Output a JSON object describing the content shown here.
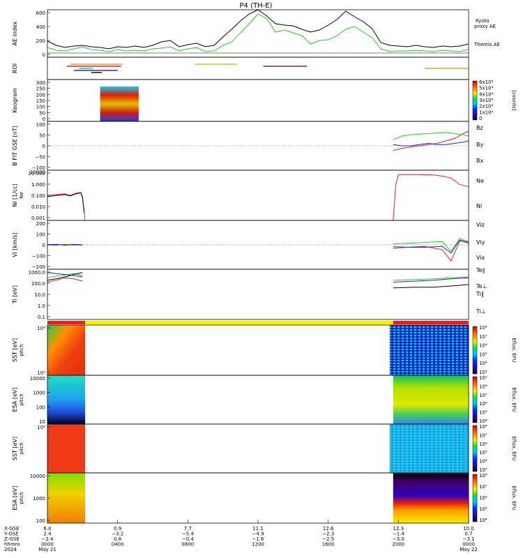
{
  "title": "P4 (TH-E)",
  "chart_data": {
    "type": "line",
    "title": "P4 (TH-E)",
    "panels": [
      {
        "id": "ae",
        "ylabel": "AE index",
        "ylim": [
          -60,
          620
        ],
        "yticks": [
          "600",
          "400",
          "200",
          "0"
        ],
        "series": [
          {
            "name": "Kyoto proxy AE",
            "color": "#22cc22",
            "x": [
              0,
              0.5,
              1,
              1.5,
              2,
              2.5,
              3,
              3.5,
              4,
              4.5,
              5,
              5.5,
              6,
              6.5,
              7,
              7.5,
              8,
              8.5,
              9,
              9.5,
              10,
              10.5,
              11,
              11.5,
              12,
              12.5,
              13,
              13.5,
              14,
              14.5,
              15,
              15.5,
              16,
              16.5,
              17,
              17.5,
              18,
              18.5,
              19,
              19.5,
              20,
              20.5,
              21,
              21.5,
              22,
              22.5,
              23,
              23.5,
              24
            ],
            "y": [
              80,
              40,
              30,
              60,
              90,
              50,
              40,
              20,
              50,
              30,
              40,
              30,
              60,
              70,
              90,
              30,
              60,
              80,
              20,
              30,
              110,
              160,
              290,
              420,
              560,
              490,
              300,
              330,
              290,
              250,
              130,
              180,
              190,
              250,
              340,
              380,
              300,
              220,
              60,
              20,
              30,
              30,
              40,
              30,
              20,
              40,
              30,
              20,
              50
            ]
          },
          {
            "name": "Themis AE",
            "color": "#000000",
            "x": [
              0,
              0.5,
              1,
              1.5,
              2,
              2.5,
              3,
              3.5,
              4,
              4.5,
              5,
              5.5,
              6,
              6.5,
              7,
              7.5,
              8,
              8.5,
              9,
              9.5,
              10,
              10.5,
              11,
              11.5,
              12,
              12.5,
              13,
              13.5,
              14,
              14.5,
              15,
              15.5,
              16,
              16.5,
              17,
              17.5,
              18,
              18.5,
              19,
              19.5,
              20,
              20.5,
              21,
              21.5,
              22,
              22.5,
              23,
              23.5,
              24
            ],
            "y": [
              170,
              110,
              80,
              100,
              110,
              90,
              80,
              60,
              90,
              80,
              100,
              80,
              110,
              160,
              180,
              90,
              120,
              140,
              90,
              110,
              230,
              340,
              460,
              560,
              620,
              530,
              420,
              400,
              390,
              340,
              300,
              330,
              400,
              480,
              600,
              520,
              450,
              350,
              150,
              110,
              100,
              90,
              110,
              90,
              80,
              100,
              90,
              100,
              130
            ]
          }
        ]
      },
      {
        "id": "roi",
        "ylabel": "ROI",
        "segments": [
          {
            "color": "#e8a020",
            "x": [
              1.3,
              4.3
            ]
          },
          {
            "color": "#d03030",
            "x": [
              1.1,
              4.2
            ]
          },
          {
            "color": "#4aa8d8",
            "x": [
              1.8,
              2.6
            ]
          },
          {
            "color": "#3030a0",
            "x": [
              1.5,
              4.0
            ]
          },
          {
            "color": "#000000",
            "x": [
              2.5,
              3.1
            ]
          },
          {
            "color": "#e8b020",
            "x": [
              8.4,
              10.8
            ]
          },
          {
            "color": "#802060",
            "x": [
              12.3,
              14.8
            ]
          },
          {
            "color": "#e8a020",
            "x": [
              21.5,
              24
            ]
          }
        ]
      },
      {
        "id": "keogram",
        "ylabel": "Keogram",
        "ylim": [
          0,
          300
        ],
        "yticks": [
          "300",
          "250",
          "200",
          "150",
          "100",
          "50",
          "0"
        ],
        "x_range": [
          3.0,
          5.2
        ],
        "colorbar": {
          "label": "[counts]",
          "ticks": [
            "6x10⁴",
            "5x10⁴",
            "4x10⁴",
            "3x10⁴",
            "2x10⁴",
            "1x10⁴",
            "0"
          ]
        }
      },
      {
        "id": "bfit",
        "ylabel": "B FIT GSE [nT]",
        "ylim": [
          -100,
          100
        ],
        "yticks": [
          "100",
          "50",
          "0",
          "−50",
          "−100"
        ],
        "x_range": [
          19.7,
          24
        ],
        "series": [
          {
            "name": "Bz",
            "color": "#e02020",
            "x": [
              19.7,
              20.2,
              20.7,
              21.2,
              21.7,
              22.2,
              22.7,
              23.2,
              23.7,
              24
            ],
            "y": [
              -20,
              -10,
              -5,
              0,
              5,
              10,
              20,
              30,
              50,
              60
            ]
          },
          {
            "name": "By",
            "color": "#22cc22",
            "x": [
              19.7,
              20.2,
              20.7,
              21.2,
              21.7,
              22.2,
              22.7,
              23.2,
              23.7,
              24
            ],
            "y": [
              25,
              40,
              45,
              48,
              50,
              52,
              55,
              50,
              45,
              40
            ]
          },
          {
            "name": "Bx",
            "color": "#2020d0",
            "x": [
              19.7,
              20.2,
              20.7,
              21.2,
              21.7,
              22.2,
              22.7,
              23.2,
              23.7,
              24
            ],
            "y": [
              5,
              0,
              0,
              5,
              10,
              5,
              5,
              10,
              15,
              20
            ]
          }
        ]
      },
      {
        "id": "n",
        "ylabel": "Ni [1/cc]",
        "sublabel": "Ne",
        "log": true,
        "ylim": [
          0.001,
          10000
        ],
        "yticks": [
          "10.000",
          "1.000",
          "0.100",
          "0.010",
          "0.001"
        ],
        "yticks_top": "10000",
        "series": [
          {
            "name": "Ne",
            "color": "#e02020",
            "x": [
              0,
              0.5,
              1,
              1.3,
              1.6,
              1.9,
              2,
              2.1,
              2.15,
              19.7,
              19.85,
              20,
              21,
              22,
              22.5,
              23,
              23.5,
              24
            ],
            "y": [
              3,
              4,
              5,
              3,
              6,
              8,
              2,
              0.01,
              0.0005,
              0.0005,
              100,
              2500,
              2500,
              2200,
              1500,
              800,
              100,
              50
            ]
          },
          {
            "name": "Ni",
            "color": "#000000",
            "x": [
              0,
              0.5,
              1,
              1.3,
              1.6,
              1.9,
              2,
              2.1
            ],
            "y": [
              2,
              3,
              4,
              2.5,
              5,
              7,
              1.5,
              0.01
            ]
          }
        ]
      },
      {
        "id": "v",
        "ylabel": "Vi [km/s]",
        "ylim": [
          -300,
          300
        ],
        "yticks": [
          "200",
          "100",
          "0",
          "−100",
          "−200"
        ],
        "series": [
          {
            "name": "Viz",
            "color": "#e02020",
            "x": [
              0,
              0.5,
              1,
              1.5,
              2,
              19.7,
              20.5,
              21.5,
              22.5,
              23,
              23.5,
              24
            ],
            "y": [
              0,
              -5,
              5,
              0,
              -5,
              -20,
              -30,
              -20,
              -60,
              -200,
              50,
              20
            ]
          },
          {
            "name": "Viy",
            "color": "#22cc22",
            "x": [
              0,
              0.5,
              1,
              1.5,
              2,
              19.7,
              20.5,
              21.5,
              22.5,
              23,
              23.5,
              24
            ],
            "y": [
              5,
              0,
              5,
              -5,
              0,
              10,
              20,
              30,
              40,
              -80,
              80,
              40
            ]
          },
          {
            "name": "Vix",
            "color": "#2020d0",
            "x": [
              0,
              0.5,
              1,
              1.5,
              2,
              19.7,
              20.5,
              21.5,
              22.5,
              23,
              23.5,
              24
            ],
            "y": [
              0,
              5,
              -5,
              5,
              0,
              -40,
              -30,
              -30,
              -20,
              -100,
              60,
              30
            ]
          }
        ]
      },
      {
        "id": "t",
        "ylabel": "Ti [eV]",
        "log": true,
        "ylim": [
          0.08,
          3000
        ],
        "yticks": [
          "1000.0",
          "100.0",
          "10.0",
          "1.0",
          "0.1"
        ],
        "series": [
          {
            "name": "Te⊥",
            "color": "#e02020",
            "x": [
              0,
              0.5,
              1,
              1.5,
              2
            ],
            "y": [
              200,
              300,
              500,
              400,
              250
            ]
          },
          {
            "name": "Ti∥",
            "color": "#22cc22",
            "x": [
              0,
              0.5,
              1,
              1.5,
              2,
              19.7,
              21,
              22,
              23,
              24
            ],
            "y": [
              500,
              700,
              900,
              1200,
              800,
              300,
              350,
              400,
              500,
              600
            ]
          },
          {
            "name": "Ti⊥",
            "color": "#2020d0",
            "x": [
              0,
              0.5,
              1,
              1.5,
              2,
              19.7,
              21,
              22,
              23,
              24
            ],
            "y": [
              1500,
              1200,
              1000,
              800,
              600,
              200,
              250,
              300,
              400,
              500
            ]
          },
          {
            "name": "Te∥",
            "color": "#000000",
            "x": [
              0,
              0.5,
              1,
              1.5,
              2,
              19.7,
              21,
              22,
              23,
              24
            ],
            "y": [
              300,
              400,
              600,
              1000,
              1500,
              60,
              70,
              70,
              90,
              120
            ]
          }
        ]
      },
      {
        "id": "sst_full",
        "ylabel": "SST [eV]",
        "sublabel": "pitch",
        "yticks": [
          "10⁶",
          "10⁵"
        ],
        "colorbar": {
          "label": "Eflux, EFU",
          "ticks": [
            "10⁸",
            "10⁷",
            "10⁶",
            "10⁵",
            "10⁴",
            "10³"
          ]
        }
      },
      {
        "id": "esa_full",
        "ylabel": "ESA [eV]",
        "sublabel": "pitch",
        "yticks": [
          "10000",
          "1000",
          "100",
          "10"
        ],
        "colorbar": {
          "label": "Eflux, EFU",
          "ticks": [
            "10⁹",
            "10⁸",
            "10⁷",
            "10⁶",
            "10⁵",
            "10⁴"
          ]
        }
      },
      {
        "id": "sst_i",
        "ylabel": "SST [eV]",
        "sublabel": "pitch",
        "yticks": [
          "10⁶"
        ],
        "colorbar": {
          "label": "Eflux, EFU",
          "ticks": [
            "10⁸",
            "10⁷",
            "10⁶",
            "10⁵",
            "10⁴",
            "10³"
          ]
        }
      },
      {
        "id": "esa_i",
        "ylabel": "ESA [eV]",
        "sublabel": "pitch",
        "yticks": [
          "10000",
          "1000",
          "100"
        ],
        "colorbar": {
          "label": "Eflux, EFU",
          "ticks": [
            "10⁸",
            "10⁷",
            "10⁶",
            "10⁵",
            "10⁴"
          ]
        }
      }
    ],
    "x_axis": {
      "row_labels": [
        "X-GSE",
        "Y-GSE",
        "Z-GSE",
        "hhmm",
        "2024"
      ],
      "columns": [
        {
          "x": 0,
          "vals": [
            "6.0",
            "2.4",
            "−2.4",
            "0000",
            "May 21"
          ]
        },
        {
          "x": 4,
          "vals": [
            "0.9",
            "−3.2",
            "0.8",
            "0400",
            ""
          ]
        },
        {
          "x": 8,
          "vals": [
            "7.7",
            "−5.4",
            "−0.4",
            "0800",
            ""
          ]
        },
        {
          "x": 12,
          "vals": [
            "11.1",
            "−4.9",
            "−1.6",
            "1200",
            ""
          ]
        },
        {
          "x": 16,
          "vals": [
            "12.6",
            "−2.3",
            "−2.5",
            "1600",
            ""
          ]
        },
        {
          "x": 20,
          "vals": [
            "12.3",
            "−1.4",
            "−3.0",
            "2000",
            ""
          ]
        },
        {
          "x": 24,
          "vals": [
            "10.0",
            "0.7",
            "−3.1",
            "0000",
            "May 22"
          ]
        }
      ]
    }
  }
}
